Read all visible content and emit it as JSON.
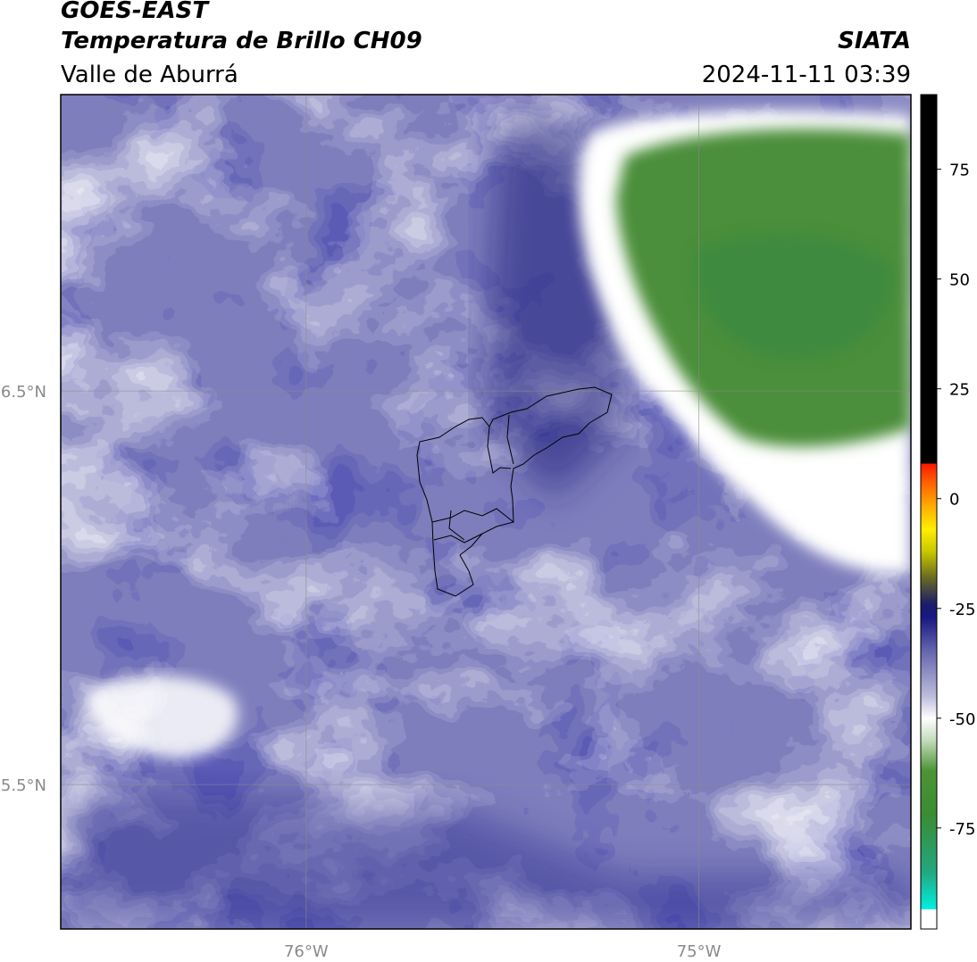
{
  "header": {
    "title": "GOES-EAST",
    "subtitle": "Temperatura de Brillo CH09",
    "region": "Valle de Aburrá",
    "source": "SIATA",
    "datetime": "2024-11-11 03:39"
  },
  "map": {
    "xlim": [
      -76.625,
      -74.46
    ],
    "ylim": [
      5.133,
      7.253
    ],
    "xticks": [
      {
        "value": -76,
        "label": "76°W"
      },
      {
        "value": -75,
        "label": "75°W"
      }
    ],
    "yticks": [
      {
        "value": 5.5,
        "label": "5.5°N"
      },
      {
        "value": 6.5,
        "label": "6.5°N"
      }
    ],
    "grid": true
  },
  "colorbar": {
    "lim": [
      -98,
      92
    ],
    "ticks": [
      -75,
      -50,
      -25,
      0,
      25,
      50,
      75
    ],
    "stops": [
      {
        "value": -98,
        "color": "#ffffff"
      },
      {
        "value": -93.5,
        "color": "#ffffff"
      },
      {
        "value": -93.5,
        "color": "#00f0e0"
      },
      {
        "value": -85,
        "color": "#22a880"
      },
      {
        "value": -72,
        "color": "#3a8c34"
      },
      {
        "value": -62,
        "color": "#4c9434"
      },
      {
        "value": -55,
        "color": "#c4dcbc"
      },
      {
        "value": -50,
        "color": "#ffffff"
      },
      {
        "value": -45,
        "color": "#bcbcdc"
      },
      {
        "value": -35,
        "color": "#6868b0"
      },
      {
        "value": -27,
        "color": "#181880"
      },
      {
        "value": -24,
        "color": "#1c1c6a"
      },
      {
        "value": -18,
        "color": "#6a6a20"
      },
      {
        "value": -12,
        "color": "#c8c800"
      },
      {
        "value": -7,
        "color": "#ffee00"
      },
      {
        "value": -2,
        "color": "#ffb000"
      },
      {
        "value": 3,
        "color": "#ff6a00"
      },
      {
        "value": 8,
        "color": "#ff1800"
      },
      {
        "value": 8,
        "color": "#000000"
      },
      {
        "value": 92,
        "color": "#000000"
      }
    ]
  }
}
